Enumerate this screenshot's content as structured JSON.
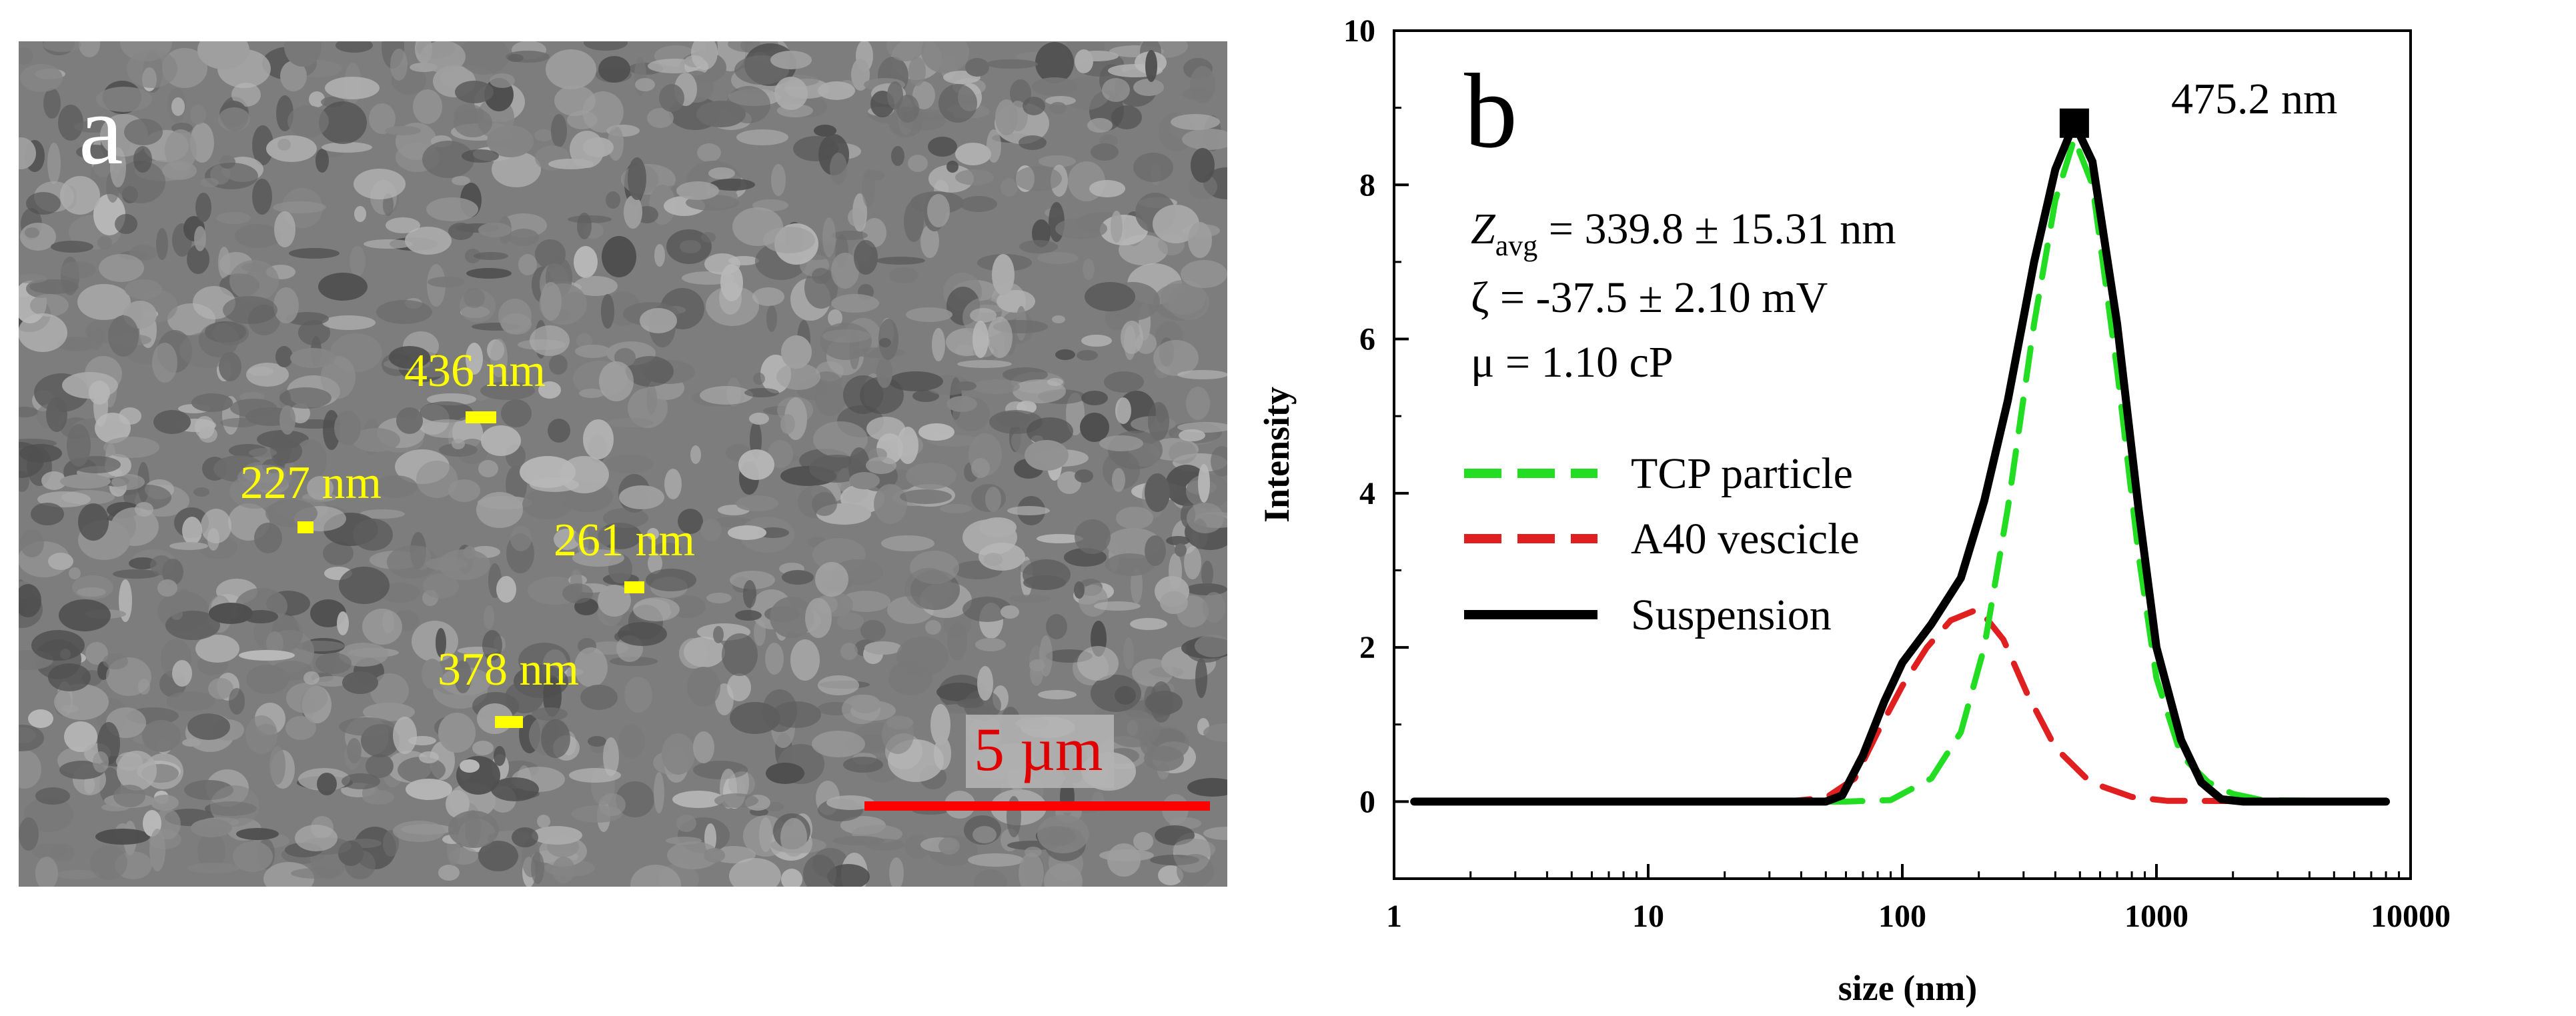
{
  "panel_a": {
    "letter": "a",
    "measurements": [
      {
        "label": "436 nm"
      },
      {
        "label": "227 nm"
      },
      {
        "label": "261 nm"
      },
      {
        "label": "378 nm"
      }
    ],
    "scale_label": "5 µm",
    "colors": {
      "measure": "#ffff00",
      "scale": "#ff0000"
    }
  },
  "chart_data": {
    "type": "line",
    "panel_letter": "b",
    "xlabel": "size (nm)",
    "ylabel": "Intensity",
    "x_scale": "log",
    "xlim": [
      1,
      10000
    ],
    "ylim": [
      -1,
      10
    ],
    "x_ticks": [
      "1",
      "10",
      "100",
      "1000",
      "10000"
    ],
    "y_ticks": [
      "0",
      "2",
      "4",
      "6",
      "8",
      "10"
    ],
    "grid": false,
    "legend_position": "center-left",
    "series": [
      {
        "name": "TCP particle",
        "color": "#22dd22",
        "style": "dashed",
        "points": [
          [
            1.2,
            0
          ],
          [
            60,
            0
          ],
          [
            90,
            0.02
          ],
          [
            130,
            0.3
          ],
          [
            170,
            0.9
          ],
          [
            210,
            2.0
          ],
          [
            260,
            3.8
          ],
          [
            330,
            6.2
          ],
          [
            400,
            7.8
          ],
          [
            475,
            8.6
          ],
          [
            560,
            8.0
          ],
          [
            700,
            5.6
          ],
          [
            850,
            3.2
          ],
          [
            1000,
            1.6
          ],
          [
            1250,
            0.6
          ],
          [
            1600,
            0.25
          ],
          [
            2000,
            0.1
          ],
          [
            2600,
            0.02
          ],
          [
            8000,
            0
          ]
        ]
      },
      {
        "name": "A40 vescicle",
        "color": "#e02020",
        "style": "dashed",
        "points": [
          [
            1.2,
            0
          ],
          [
            35,
            0
          ],
          [
            50,
            0.05
          ],
          [
            65,
            0.3
          ],
          [
            80,
            0.9
          ],
          [
            100,
            1.5
          ],
          [
            125,
            2.0
          ],
          [
            155,
            2.35
          ],
          [
            200,
            2.5
          ],
          [
            250,
            2.1
          ],
          [
            310,
            1.4
          ],
          [
            400,
            0.7
          ],
          [
            550,
            0.25
          ],
          [
            800,
            0.06
          ],
          [
            1100,
            0.01
          ],
          [
            8000,
            0
          ]
        ]
      },
      {
        "name": "Suspension",
        "color": "#000000",
        "style": "solid",
        "points": [
          [
            1.2,
            0
          ],
          [
            50,
            0
          ],
          [
            58,
            0.08
          ],
          [
            70,
            0.6
          ],
          [
            85,
            1.3
          ],
          [
            100,
            1.8
          ],
          [
            130,
            2.3
          ],
          [
            170,
            2.9
          ],
          [
            210,
            3.9
          ],
          [
            260,
            5.2
          ],
          [
            330,
            7.0
          ],
          [
            400,
            8.2
          ],
          [
            475,
            8.8
          ],
          [
            560,
            8.3
          ],
          [
            700,
            6.2
          ],
          [
            850,
            3.8
          ],
          [
            1000,
            2.0
          ],
          [
            1250,
            0.8
          ],
          [
            1500,
            0.25
          ],
          [
            1800,
            0.03
          ],
          [
            2200,
            0
          ],
          [
            8000,
            0
          ]
        ]
      }
    ],
    "peak": {
      "x": 475.2,
      "y": 8.8,
      "label": "475.2 nm"
    },
    "annotations": {
      "z_main": "Z",
      "z_sub": "avg",
      "z_rest": " = 339.8 ± 15.31 nm",
      "zeta": "ζ  = -37.5 ± 2.10 mV",
      "mu": "μ = 1.10 cP"
    }
  }
}
